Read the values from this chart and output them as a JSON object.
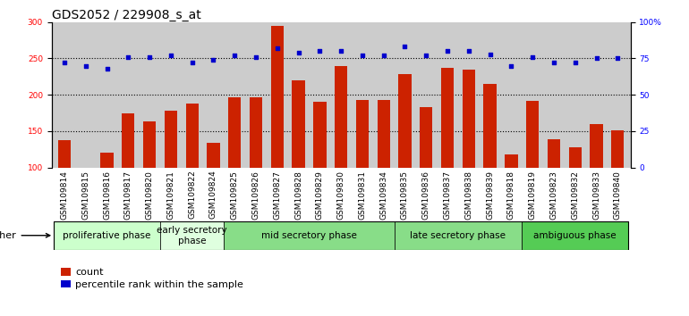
{
  "title": "GDS2052 / 229908_s_at",
  "samples": [
    "GSM109814",
    "GSM109815",
    "GSM109816",
    "GSM109817",
    "GSM109820",
    "GSM109821",
    "GSM109822",
    "GSM109824",
    "GSM109825",
    "GSM109826",
    "GSM109827",
    "GSM109828",
    "GSM109829",
    "GSM109830",
    "GSM109831",
    "GSM109834",
    "GSM109835",
    "GSM109836",
    "GSM109837",
    "GSM109838",
    "GSM109839",
    "GSM109818",
    "GSM109819",
    "GSM109823",
    "GSM109832",
    "GSM109833",
    "GSM109840"
  ],
  "counts": [
    138,
    100,
    121,
    175,
    163,
    178,
    188,
    134,
    197,
    196,
    295,
    220,
    190,
    240,
    193,
    193,
    228,
    183,
    237,
    235,
    215,
    118,
    192,
    139,
    128,
    160,
    151
  ],
  "percentiles": [
    72,
    70,
    68,
    76,
    76,
    77,
    72,
    74,
    77,
    76,
    82,
    79,
    80,
    80,
    77,
    77,
    83,
    77,
    80,
    80,
    78,
    70,
    76,
    72,
    72,
    75,
    75
  ],
  "phases": [
    {
      "name": "proliferative phase",
      "start": 0,
      "end": 5,
      "color": "#ccffcc"
    },
    {
      "name": "early secretory\nphase",
      "start": 5,
      "end": 8,
      "color": "#dfffdf"
    },
    {
      "name": "mid secretory phase",
      "start": 8,
      "end": 16,
      "color": "#88dd88"
    },
    {
      "name": "late secretory phase",
      "start": 16,
      "end": 22,
      "color": "#88dd88"
    },
    {
      "name": "ambiguous phase",
      "start": 22,
      "end": 27,
      "color": "#55cc55"
    }
  ],
  "ylim_left": [
    100,
    300
  ],
  "ylim_right": [
    0,
    100
  ],
  "bar_color": "#cc2200",
  "dot_color": "#0000cc",
  "plot_bg_color": "#cccccc",
  "xtick_bg_color": "#bbbbbb",
  "title_fontsize": 10,
  "tick_fontsize": 6.5,
  "phase_fontsize": 7.5,
  "legend_fontsize": 8
}
